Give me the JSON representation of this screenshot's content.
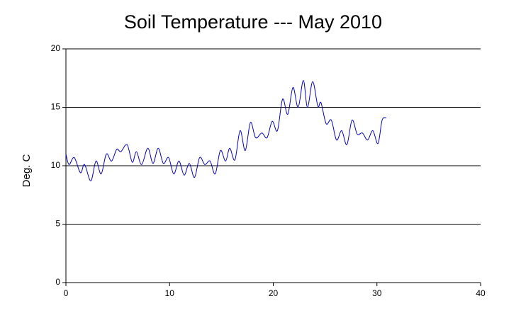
{
  "chart_data": {
    "type": "line",
    "title": "Soil Temperature --- May 2010",
    "ylabel": "Deg. C",
    "x": [
      0,
      0.3,
      0.8,
      1.4,
      1.8,
      2.4,
      2.9,
      3.4,
      3.9,
      4.4,
      4.9,
      5.3,
      5.9,
      6.4,
      6.8,
      7.3,
      7.9,
      8.4,
      8.9,
      9.4,
      9.9,
      10.4,
      10.9,
      11.4,
      11.9,
      12.4,
      12.9,
      13.4,
      13.9,
      14.4,
      14.9,
      15.4,
      15.8,
      16.3,
      16.8,
      17.3,
      17.8,
      18.3,
      18.9,
      19.4,
      19.9,
      20.4,
      20.9,
      21.4,
      21.9,
      22.4,
      22.9,
      23.3,
      23.8,
      24.3,
      24.6,
      25.1,
      25.6,
      26.1,
      26.6,
      27.1,
      27.6,
      28.1,
      28.6,
      29.1,
      29.6,
      30.1,
      30.5,
      30.9
    ],
    "series": [
      {
        "name": "Soil Temperature",
        "color": "#0000cc",
        "values": [
          11.0,
          10.1,
          10.7,
          9.4,
          10.1,
          8.7,
          10.4,
          9.3,
          11.0,
          10.4,
          11.4,
          11.2,
          11.8,
          10.3,
          11.2,
          10.1,
          11.5,
          10.2,
          11.5,
          10.2,
          10.7,
          9.3,
          10.4,
          9.2,
          10.2,
          9.0,
          10.7,
          10.1,
          10.4,
          9.3,
          11.3,
          10.4,
          11.5,
          10.5,
          13.0,
          11.3,
          13.7,
          12.4,
          12.8,
          12.4,
          13.8,
          13.0,
          15.7,
          14.4,
          16.7,
          15.0,
          17.3,
          15.0,
          17.2,
          15.1,
          15.4,
          13.6,
          13.9,
          12.2,
          13.0,
          11.8,
          13.9,
          12.7,
          12.8,
          12.2,
          13.0,
          11.9,
          13.9,
          14.1
        ]
      }
    ],
    "xlim": [
      0,
      40
    ],
    "xticks": [
      0,
      10,
      20,
      30,
      40
    ],
    "ylim": [
      0,
      20
    ],
    "yticks": [
      0,
      5,
      10,
      15,
      20
    ],
    "grid": true
  }
}
